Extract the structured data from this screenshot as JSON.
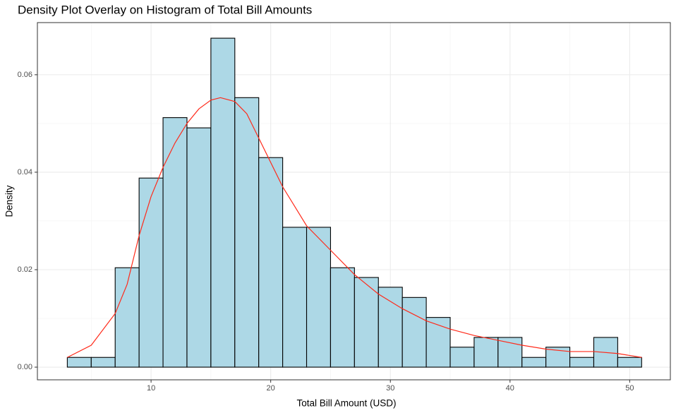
{
  "chart_data": {
    "type": "histogram",
    "title": "Density Plot Overlay on Histogram of Total Bill Amounts",
    "xlabel": "Total Bill Amount (USD)",
    "ylabel": "Density",
    "bins": [
      3,
      5,
      7,
      9,
      11,
      13,
      15,
      17,
      19,
      21,
      23,
      25,
      27,
      29,
      31,
      33,
      35,
      37,
      39,
      41,
      43,
      45,
      47,
      49,
      51
    ],
    "values": [
      0.002,
      0.002,
      0.0204,
      0.0388,
      0.0512,
      0.0491,
      0.0675,
      0.0553,
      0.043,
      0.0287,
      0.0287,
      0.0204,
      0.0184,
      0.0164,
      0.0143,
      0.0102,
      0.0041,
      0.0061,
      0.0061,
      0.002,
      0.0041,
      0.002,
      0.0061,
      0.002
    ],
    "color": "#add8e6",
    "edgecolor": "#000000",
    "density": {
      "color": "#ff2a1a",
      "x": [
        3,
        5,
        7,
        8,
        9,
        10,
        11,
        12,
        13,
        14,
        15,
        15.8,
        17,
        18,
        19,
        20,
        21,
        22,
        23,
        25,
        27,
        29,
        31,
        33,
        35,
        37,
        39,
        41,
        43,
        45,
        47,
        49,
        51
      ],
      "values": [
        0.002,
        0.0045,
        0.011,
        0.017,
        0.027,
        0.035,
        0.041,
        0.046,
        0.05,
        0.053,
        0.0548,
        0.0553,
        0.0545,
        0.052,
        0.047,
        0.042,
        0.037,
        0.033,
        0.029,
        0.024,
        0.019,
        0.015,
        0.012,
        0.0095,
        0.0078,
        0.0065,
        0.0055,
        0.0045,
        0.0037,
        0.0032,
        0.0032,
        0.0028,
        0.002
      ]
    },
    "xlim": [
      0.5,
      53.4
    ],
    "ylim": [
      -0.0026,
      0.0707
    ],
    "xticks": [
      10,
      20,
      30,
      40,
      50
    ],
    "yticks": [
      {
        "value": 0,
        "label": "0.00"
      },
      {
        "value": 0.02,
        "label": "0.02"
      },
      {
        "value": 0.04,
        "label": "0.04"
      },
      {
        "value": 0.06,
        "label": "0.06"
      }
    ],
    "xminor": [
      5,
      15,
      25,
      35,
      45
    ],
    "yminor": [
      0.01,
      0.03,
      0.05
    ],
    "grid": true
  }
}
